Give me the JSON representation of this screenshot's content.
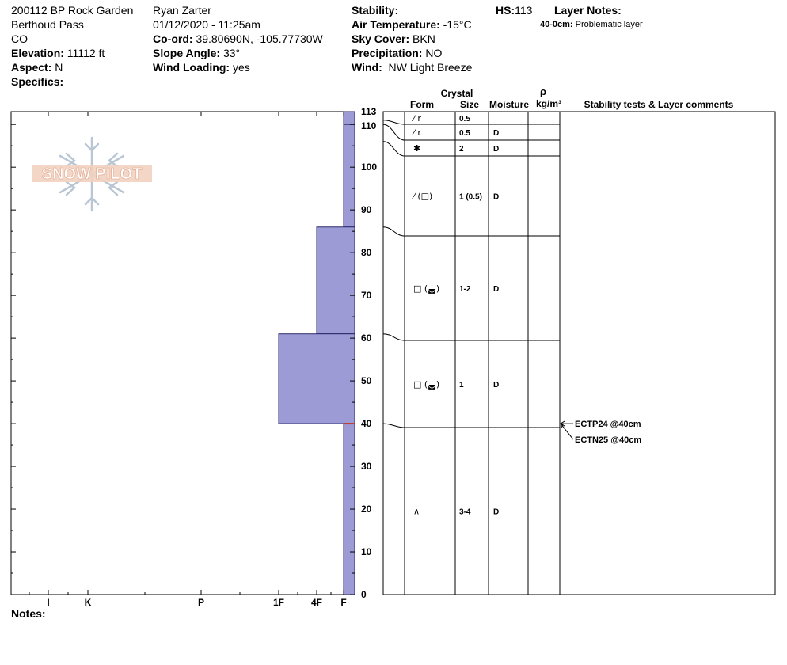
{
  "header": {
    "col1": {
      "site": "200112 BP Rock Garden",
      "location": "Berthoud Pass",
      "state": "CO",
      "elevation_label": "Elevation:",
      "elevation_value": "11112 ft",
      "aspect_label": "Aspect:",
      "aspect_value": "N",
      "specifics_label": "Specifics:"
    },
    "col2": {
      "observer": "Ryan Zarter",
      "datetime": "01/12/2020 - 11:25am",
      "coord_label": "Co-ord:",
      "coord_value": "39.80690N, -105.77730W",
      "slope_label": "Slope Angle:",
      "slope_value": "33°",
      "wind_loading_label": "Wind Loading:",
      "wind_loading_value": "yes"
    },
    "col3": {
      "stability_label": "Stability:",
      "air_temp_label": "Air Temperature:",
      "air_temp_value": "-15°C",
      "sky_label": "Sky Cover:",
      "sky_value": "BKN",
      "precip_label": "Precipitation:",
      "precip_value": "NO",
      "wind_label": "Wind:",
      "wind_value": "NW Light Breeze"
    },
    "hs_label": "HS:",
    "hs_value": "113",
    "layer_notes_label": "Layer Notes:",
    "layer_note_depth": "40-0cm:",
    "layer_note_text": "Problematic layer"
  },
  "notes_label": "Notes:",
  "logo_text": "SNOW PILOT",
  "table_headers": {
    "crystal": "Crystal",
    "form": "Form",
    "size": "Size",
    "moisture": "Moisture",
    "rho": "ρ",
    "density_unit": "kg/m³",
    "stability": "Stability tests & Layer comments"
  },
  "colors": {
    "hardness_fill": "#9d9bd6",
    "hardness_stroke": "#2a2a6a",
    "line": "#000000"
  },
  "chart_data": {
    "type": "bar",
    "x_ticks": [
      "I",
      "K",
      "P",
      "1F",
      "4F",
      "F"
    ],
    "y_ticks": [
      "0",
      "10",
      "20",
      "30",
      "40",
      "50",
      "60",
      "70",
      "80",
      "90",
      "100",
      "110",
      "113"
    ],
    "ylim": [
      0,
      113
    ],
    "hardness_profile": [
      {
        "top": 113,
        "bottom": 110,
        "hardness": "F"
      },
      {
        "top": 110,
        "bottom": 86,
        "hardness": "F"
      },
      {
        "top": 86,
        "bottom": 61,
        "hardness": "4F"
      },
      {
        "top": 61,
        "bottom": 40,
        "hardness": "1F"
      },
      {
        "top": 40,
        "bottom": 0,
        "hardness": "F"
      }
    ],
    "layers": [
      {
        "top": 113,
        "bottom": 111,
        "form": "⁄ r",
        "size": "0.5",
        "moisture": ""
      },
      {
        "top": 111,
        "bottom": 110,
        "form": "⁄ r",
        "size": "0.5",
        "moisture": "D"
      },
      {
        "top": 110,
        "bottom": 106,
        "form": "✱",
        "size": "2",
        "moisture": "D"
      },
      {
        "top": 106,
        "bottom": 86,
        "form": "⁄ (□)",
        "size": "1 (0.5)",
        "moisture": "D"
      },
      {
        "top": 86,
        "bottom": 61,
        "form": "□ (◛)",
        "size": "1-2",
        "moisture": "D"
      },
      {
        "top": 61,
        "bottom": 40,
        "form": "□ (◛)",
        "size": "1",
        "moisture": "D"
      },
      {
        "top": 40,
        "bottom": 0,
        "form": "∧",
        "size": "3-4",
        "moisture": "D"
      }
    ],
    "stability_tests": [
      {
        "label": "ECTP24 @40cm",
        "depth": 40
      },
      {
        "label": "ECTN25 @40cm",
        "depth": 40
      }
    ]
  }
}
